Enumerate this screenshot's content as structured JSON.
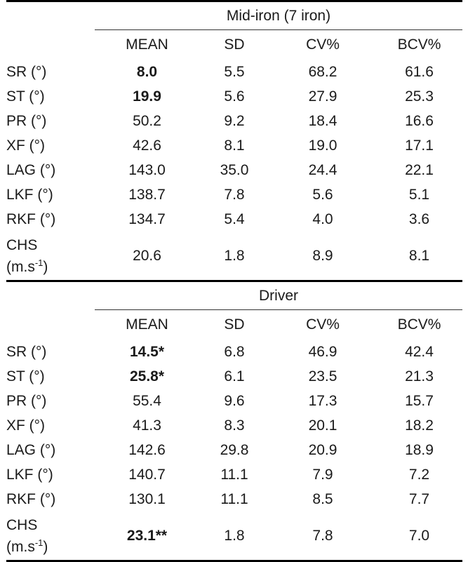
{
  "columns": [
    "MEAN",
    "SD",
    "CV%",
    "BCV%"
  ],
  "sections": [
    {
      "title": "Mid-iron (7 iron)",
      "rows": [
        {
          "label": "SR (°)",
          "mean": "8.0",
          "mean_bold": true,
          "sd": "5.5",
          "cv": "68.2",
          "bcv": "61.6"
        },
        {
          "label": "ST (°)",
          "mean": "19.9",
          "mean_bold": true,
          "sd": "5.6",
          "cv": "27.9",
          "bcv": "25.3"
        },
        {
          "label": "PR (°)",
          "mean": "50.2",
          "sd": "9.2",
          "cv": "18.4",
          "bcv": "16.6"
        },
        {
          "label": "XF (°)",
          "mean": "42.6",
          "sd": "8.1",
          "cv": "19.0",
          "bcv": "17.1"
        },
        {
          "label": "LAG (°)",
          "mean": "143.0",
          "sd": "35.0",
          "cv": "24.4",
          "bcv": "22.1"
        },
        {
          "label": "LKF (°)",
          "mean": "138.7",
          "sd": "7.8",
          "cv": "5.6",
          "bcv": "5.1"
        },
        {
          "label": "RKF (°)",
          "mean": "134.7",
          "sd": "5.4",
          "cv": "4.0",
          "bcv": "3.6"
        },
        {
          "label": "CHS",
          "unit": "(m.s",
          "unit_sup": "-1",
          "unit_close": ")",
          "mean": "20.6",
          "sd": "1.8",
          "cv": "8.9",
          "bcv": "8.1"
        }
      ]
    },
    {
      "title": "Driver",
      "rows": [
        {
          "label": "SR (°)",
          "mean": "14.5*",
          "mean_bold": true,
          "sd": "6.8",
          "cv": "46.9",
          "bcv": "42.4"
        },
        {
          "label": "ST (°)",
          "mean": "25.8*",
          "mean_bold": true,
          "sd": "6.1",
          "cv": "23.5",
          "bcv": "21.3"
        },
        {
          "label": "PR (°)",
          "mean": "55.4",
          "sd": "9.6",
          "cv": "17.3",
          "bcv": "15.7"
        },
        {
          "label": "XF (°)",
          "mean": "41.3",
          "sd": "8.3",
          "cv": "20.1",
          "bcv": "18.2"
        },
        {
          "label": "LAG (°)",
          "mean": "142.6",
          "sd": "29.8",
          "cv": "20.9",
          "bcv": "18.9"
        },
        {
          "label": "LKF (°)",
          "mean": "140.7",
          "sd": "11.1",
          "cv": "7.9",
          "bcv": "7.2"
        },
        {
          "label": "RKF (°)",
          "mean": "130.1",
          "sd": "11.1",
          "cv": "8.5",
          "bcv": "7.7"
        },
        {
          "label": "CHS",
          "unit": "(m.s",
          "unit_sup": "-1",
          "unit_close": ")",
          "mean": "23.1**",
          "mean_bold": true,
          "sd": "1.8",
          "cv": "7.8",
          "bcv": "7.0"
        }
      ]
    }
  ]
}
